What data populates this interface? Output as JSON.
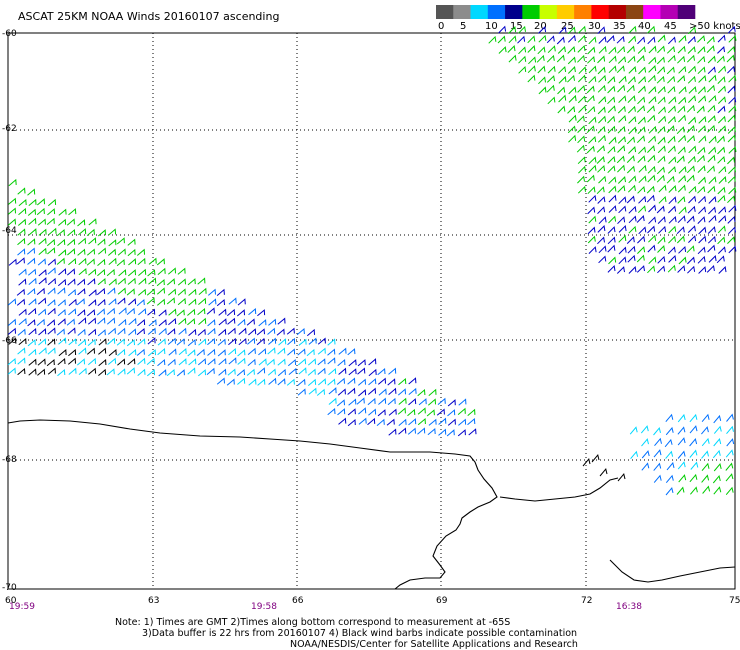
{
  "title": "ASCAT 25KM NOAA Winds 20160107 ascending",
  "legend": {
    "unit": ">50 knots",
    "labels": [
      "0",
      "5",
      "10",
      "15",
      "20",
      "25",
      "30",
      "35",
      "40",
      "45"
    ],
    "colors": [
      "#555555",
      "#8c8c8c",
      "#00d8ff",
      "#0070ff",
      "#00008c",
      "#00cc00",
      "#c8ff00",
      "#ffcc00",
      "#ff8000",
      "#ff0000",
      "#b40000",
      "#8b4513",
      "#ff00ff",
      "#b400b4",
      "#500078"
    ]
  },
  "lat_labels": [
    "-60",
    "-62",
    "-64",
    "-66",
    "-68",
    "-70"
  ],
  "lon_labels": [
    "60",
    "63",
    "66",
    "69",
    "72",
    "75"
  ],
  "time_labels": [
    "19:59",
    "19:58",
    "16:38"
  ],
  "notes": [
    "Note: 1) Times are GMT 2)Times along bottom correspond to measurement at -65S",
    "3)Data buffer is 22 hrs from 20160107 4) Black wind barbs indicate possible contamination",
    "NOAA/NESDIS/Center for Satellite Applications and Research"
  ],
  "colors": {
    "frame": "#000000",
    "time_label": "#800080",
    "green": "#00cc00",
    "blue": "#0000c8",
    "mid_blue": "#0070ff",
    "cyan": "#00d8ff",
    "black": "#000000"
  },
  "coastline_color": "#000000"
}
